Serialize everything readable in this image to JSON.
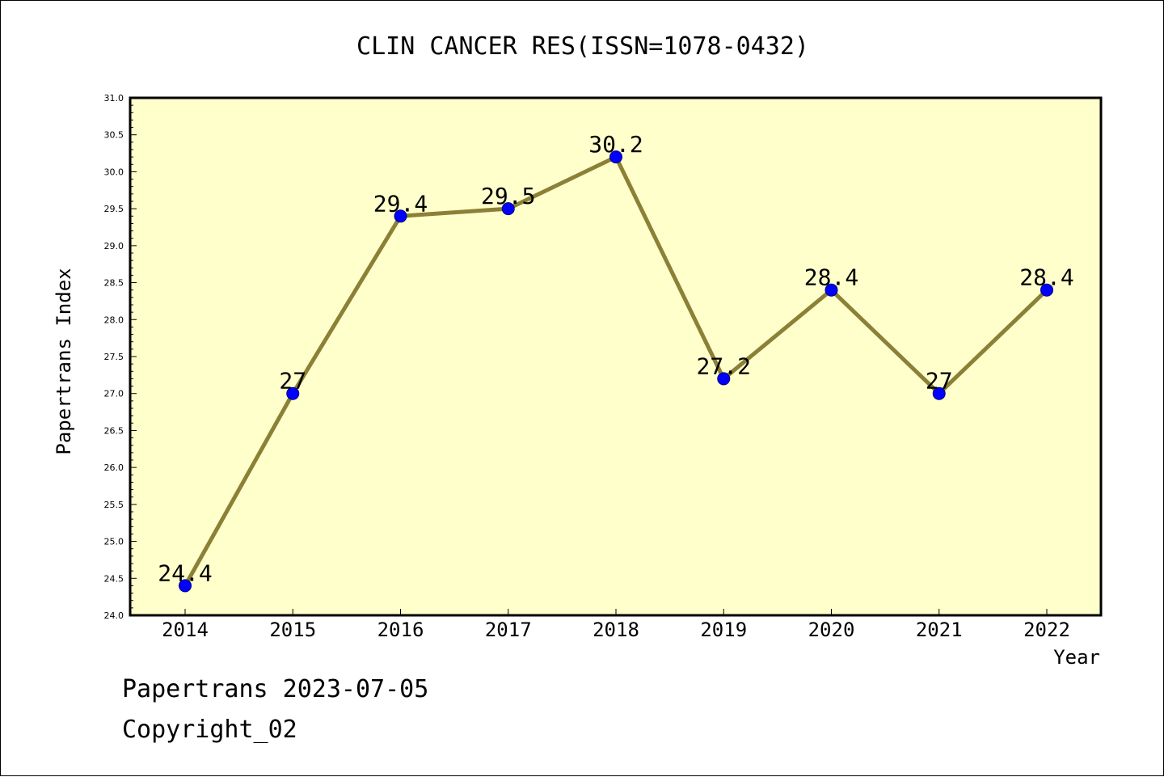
{
  "footer": {
    "source_stamp": "Papertrans 2023-07-05",
    "copyright": "Copyright_02"
  },
  "chart_data": {
    "type": "line",
    "title": "CLIN CANCER RES(ISSN=1078-0432)",
    "xlabel": "Year",
    "ylabel": "Papertrans Index",
    "categories": [
      "2014",
      "2015",
      "2016",
      "2017",
      "2018",
      "2019",
      "2020",
      "2021",
      "2022"
    ],
    "series": [
      {
        "values": [
          24.4,
          27,
          29.4,
          29.5,
          30.2,
          27.2,
          28.4,
          27,
          28.4
        ],
        "labels": [
          "24.4",
          "27",
          "29.4",
          "29.5",
          "30.2",
          "27.2",
          "28.4",
          "27",
          "28.4"
        ]
      }
    ],
    "ylim": [
      24.0,
      31.0
    ],
    "yticks": [
      "24.0",
      "24.5",
      "25.0",
      "25.5",
      "26.0",
      "26.5",
      "27.0",
      "27.5",
      "28.0",
      "28.5",
      "29.0",
      "29.5",
      "30.0",
      "30.5",
      "31.0"
    ],
    "grid": false,
    "colors": {
      "plot_background": "#ffffcc",
      "line": "#8b8036",
      "marker_fill": "#0000ff",
      "marker_edge": "#000080"
    }
  }
}
